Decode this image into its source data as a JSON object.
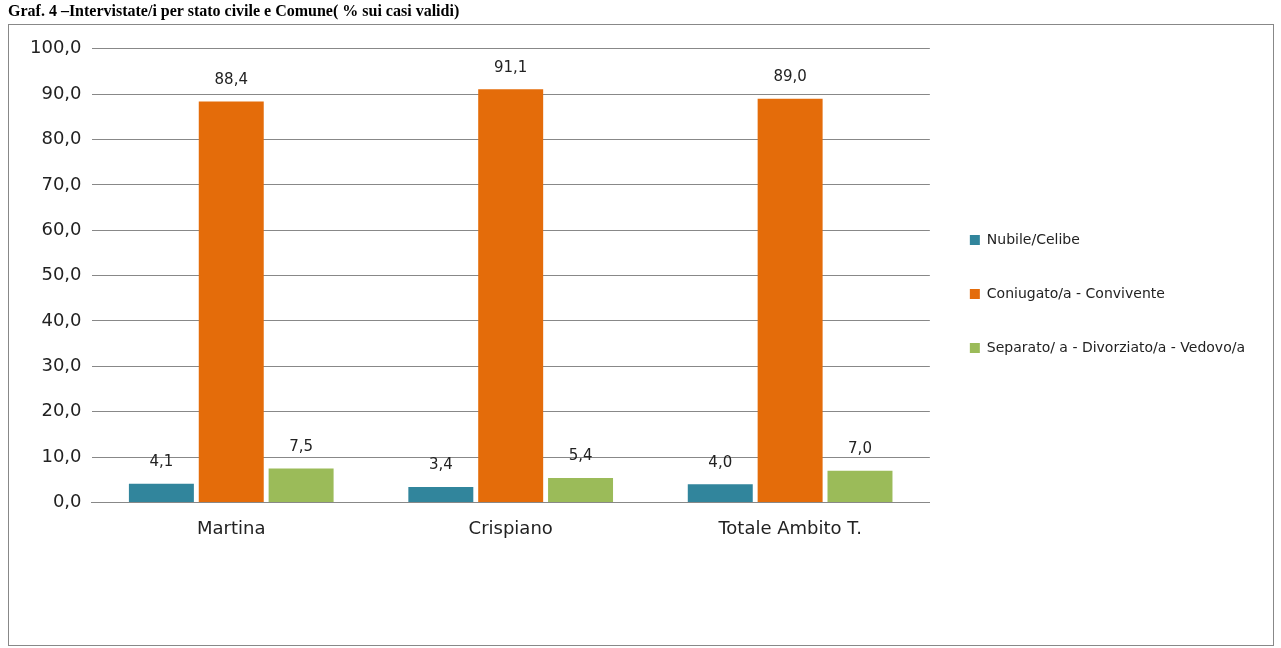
{
  "chart_data": {
    "type": "bar",
    "title": "Graf. 4 –Intervistate/i per stato civile e Comune( % sui casi validi)",
    "categories": [
      "Martina",
      "Crispiano",
      "Totale Ambito T."
    ],
    "series": [
      {
        "name": "Nubile/Celibe",
        "color": "#31859c",
        "values": [
          4.1,
          3.4,
          4.0
        ],
        "value_labels": [
          "4,1",
          "3,4",
          "4,0"
        ]
      },
      {
        "name": "Coniugato/a - Convivente",
        "color": "#e46c0a",
        "values": [
          88.4,
          91.1,
          89.0
        ],
        "value_labels": [
          "88,4",
          "91,1",
          "89,0"
        ]
      },
      {
        "name": "Separato/ a - Divorziato/a - Vedovo/a",
        "color": "#9bbb59",
        "values": [
          7.5,
          5.4,
          7.0
        ],
        "value_labels": [
          "7,5",
          "5,4",
          "7,0"
        ]
      }
    ],
    "ylim": [
      0,
      100
    ],
    "yticks": [
      {
        "value": 0,
        "label": "0,0"
      },
      {
        "value": 10,
        "label": "10,0"
      },
      {
        "value": 20,
        "label": "20,0"
      },
      {
        "value": 30,
        "label": "30,0"
      },
      {
        "value": 40,
        "label": "40,0"
      },
      {
        "value": 50,
        "label": "50,0"
      },
      {
        "value": 60,
        "label": "60,0"
      },
      {
        "value": 70,
        "label": "70,0"
      },
      {
        "value": 80,
        "label": "80,0"
      },
      {
        "value": 90,
        "label": "90,0"
      },
      {
        "value": 100,
        "label": "100,0"
      }
    ],
    "grid": "y",
    "legend": "right"
  }
}
